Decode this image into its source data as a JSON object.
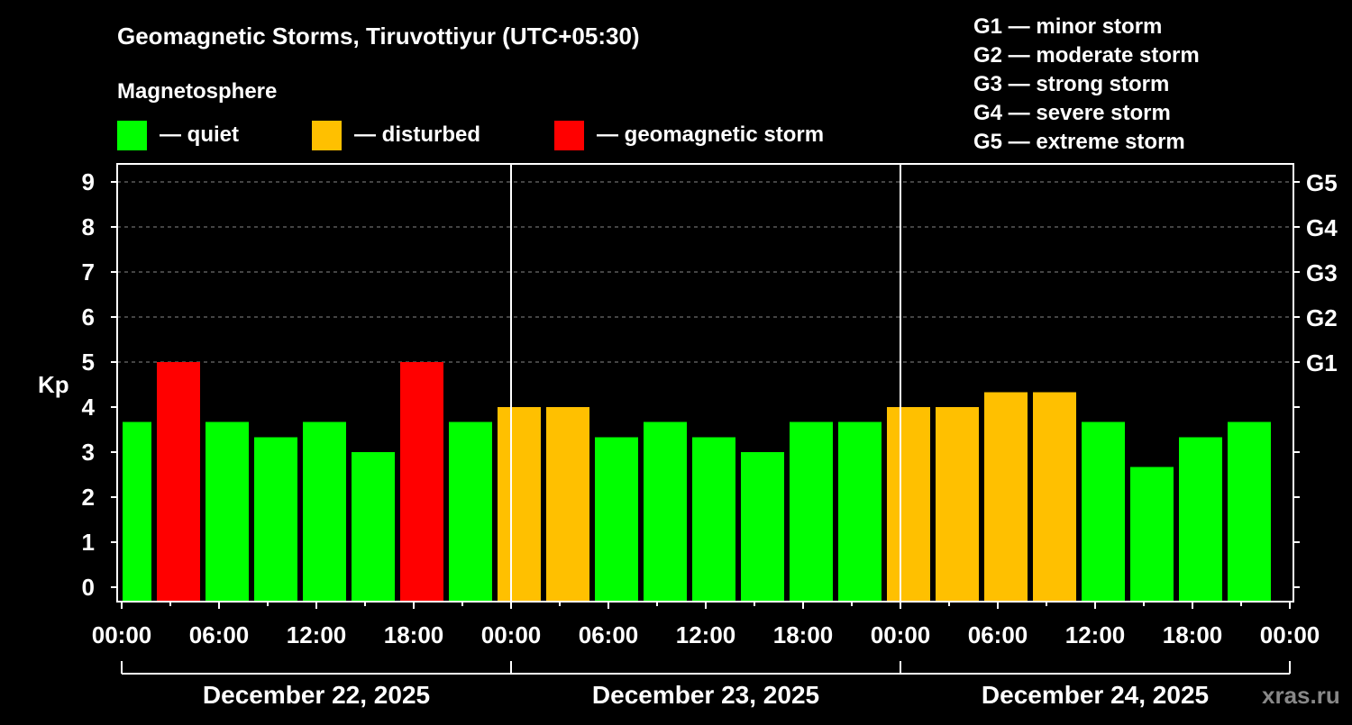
{
  "chart_data": {
    "type": "bar",
    "title": "Geomagnetic Storms, Tiruvottiyur (UTC+05:30)",
    "legend_title": "Magnetosphere",
    "legend": [
      {
        "label": "— quiet",
        "color": "#00ff00"
      },
      {
        "label": "— disturbed",
        "color": "#ffc000"
      },
      {
        "label": "— geomagnetic storm",
        "color": "#ff0000"
      }
    ],
    "g_scale": [
      "G1 — minor storm",
      "G2 — moderate storm",
      "G3 — strong storm",
      "G4 — severe storm",
      "G5 — extreme storm"
    ],
    "ylabel": "Kp",
    "ylim": [
      0,
      9
    ],
    "yticks": [
      "0",
      "1",
      "2",
      "3",
      "4",
      "5",
      "6",
      "7",
      "8",
      "9"
    ],
    "right_ticks": [
      {
        "kp": 5,
        "label": "G1"
      },
      {
        "kp": 6,
        "label": "G2"
      },
      {
        "kp": 7,
        "label": "G3"
      },
      {
        "kp": 8,
        "label": "G4"
      },
      {
        "kp": 9,
        "label": "G5"
      }
    ],
    "xticks": [
      "00:00",
      "06:00",
      "12:00",
      "18:00",
      "00:00",
      "06:00",
      "12:00",
      "18:00",
      "00:00",
      "06:00",
      "12:00",
      "18:00",
      "00:00"
    ],
    "days": [
      "December 22, 2025",
      "December 23, 2025",
      "December 24, 2025"
    ],
    "values": [
      3.67,
      5,
      3.67,
      3.33,
      3.67,
      3,
      5,
      3.67,
      4,
      4,
      3.33,
      3.67,
      3.33,
      3,
      3.67,
      3.67,
      4,
      4,
      4.33,
      4.33,
      3.67,
      2.67,
      3.33,
      3.67
    ],
    "status": [
      "quiet",
      "storm",
      "quiet",
      "quiet",
      "quiet",
      "quiet",
      "storm",
      "quiet",
      "disturbed",
      "disturbed",
      "quiet",
      "quiet",
      "quiet",
      "quiet",
      "quiet",
      "quiet",
      "disturbed",
      "disturbed",
      "disturbed",
      "disturbed",
      "quiet",
      "quiet",
      "quiet",
      "quiet"
    ],
    "colors": {
      "quiet": "#00ff00",
      "disturbed": "#ffc000",
      "storm": "#ff0000"
    },
    "grid": "dashed at G levels",
    "watermark": "xras.ru"
  }
}
